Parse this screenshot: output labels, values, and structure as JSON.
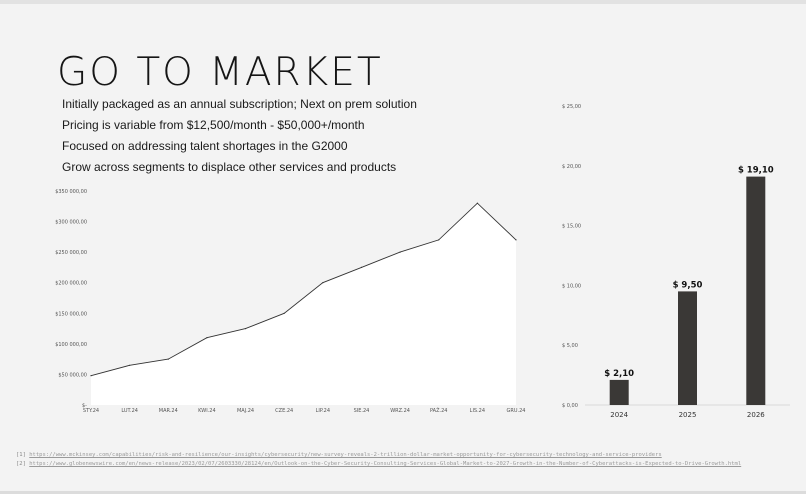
{
  "slide": {
    "title": "GO TO MARKET",
    "bullets": [
      "Initially packaged as an annual subscription; Next on prem solution",
      "Pricing is variable from $12,500/month - $50,000+/month",
      "Focused on addressing talent shortages in the G2000",
      "Grow across segments to displace other services and products"
    ]
  },
  "chart_data": [
    {
      "type": "area",
      "categories": [
        "STY.24",
        "LUT.24",
        "MAR.24",
        "KWI.24",
        "MAJ.24",
        "CZE.24",
        "LIP.24",
        "SIE.24",
        "WRZ.24",
        "PAŹ.24",
        "LIS.24",
        "GRU.24"
      ],
      "series": [
        {
          "values": [
            48000,
            65000,
            75000,
            110000,
            125000,
            150000,
            200000,
            225000,
            250000,
            270000,
            330000,
            270000
          ]
        }
      ],
      "ylim": [
        0,
        350000
      ],
      "yticks": [
        0,
        50000,
        100000,
        150000,
        200000,
        250000,
        300000,
        350000
      ],
      "ytick_labels": [
        "$-",
        "$50 000,00",
        "$100 000,00",
        "$150 000,00",
        "$200 000,00",
        "$250 000,00",
        "$300 000,00",
        "$350 000,00"
      ],
      "grid": false,
      "colors": {
        "fill": "#ffffff",
        "line": "#333333"
      }
    },
    {
      "type": "bar",
      "categories": [
        "2024",
        "2025",
        "2026"
      ],
      "values": [
        2.1,
        9.5,
        19.1
      ],
      "data_labels": [
        "$ 2,10",
        "$ 9,50",
        "$ 19,10"
      ],
      "ylim": [
        0,
        25
      ],
      "yticks": [
        0,
        5,
        10,
        15,
        20,
        25
      ],
      "ytick_labels": [
        "$ 0,00",
        "$ 5,00",
        "$ 10,00",
        "$ 15,00",
        "$ 20,00",
        "$ 25,00"
      ],
      "grid": false,
      "colors": {
        "bar": "#3a3836"
      }
    }
  ],
  "footnotes": [
    {
      "ref": "[1]",
      "url": "https://www.mckinsey.com/capabilities/risk-and-resilience/our-insights/cybersecurity/new-survey-reveals-2-trillion-dollar-market-opportunity-for-cybersecurity-technology-and-service-providers"
    },
    {
      "ref": "[2]",
      "url": "https://www.globenewswire.com/en/news-release/2023/02/07/2603330/28124/en/Outlook-on-the-Cyber-Security-Consulting-Services-Global-Market-to-2027-Growth-in-the-Number-of-Cyberattacks-is-Expected-to-Drive-Growth.html"
    }
  ]
}
